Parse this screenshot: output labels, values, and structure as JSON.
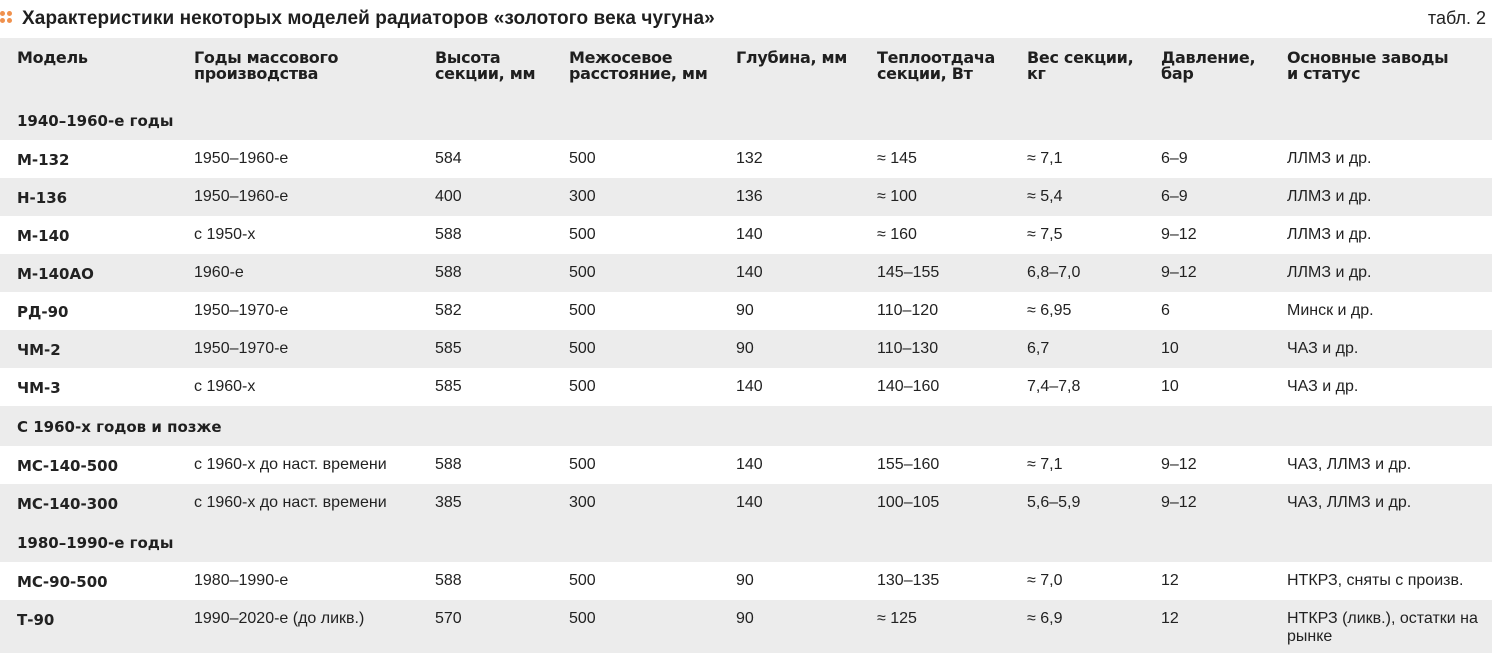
{
  "header": {
    "title": "Характеристики некоторых моделей радиаторов «золотого века чугуна»",
    "table_number": "табл. 2",
    "accent_color": "#f0914d"
  },
  "columns": [
    [
      "Модель",
      ""
    ],
    [
      "Годы массового",
      "производства"
    ],
    [
      "Высота",
      "секции, мм"
    ],
    [
      "Межосевое",
      "расстояние, мм"
    ],
    [
      "Глубина, мм",
      ""
    ],
    [
      "Теплоотдача",
      "секции, Вт"
    ],
    [
      "Вес секции,",
      "кг"
    ],
    [
      "Давление,",
      "бар"
    ],
    [
      "Основные заводы",
      "и статус"
    ]
  ],
  "groups": [
    {
      "title": "1940–1960-е годы",
      "rows": [
        [
          "М-132",
          "1950–1960-е",
          "584",
          "500",
          "132",
          "≈ 145",
          "≈ 7,1",
          "6–9",
          "ЛЛМЗ и др."
        ],
        [
          "Н-136",
          "1950–1960-е",
          "400",
          "300",
          "136",
          "≈ 100",
          "≈ 5,4",
          "6–9",
          "ЛЛМЗ и др."
        ],
        [
          "М-140",
          "с 1950-х",
          "588",
          "500",
          "140",
          "≈ 160",
          "≈ 7,5",
          "9–12",
          "ЛЛМЗ и др."
        ],
        [
          "М-140АО",
          "1960-е",
          "588",
          "500",
          "140",
          "145–155",
          "6,8–7,0",
          "9–12",
          "ЛЛМЗ и др."
        ],
        [
          "РД-90",
          "1950–1970-е",
          "582",
          "500",
          "90",
          "110–120",
          "≈ 6,95",
          "6",
          "Минск и др."
        ],
        [
          "ЧМ-2",
          "1950–1970-е",
          "585",
          "500",
          "90",
          "110–130",
          "6,7",
          "10",
          "ЧАЗ и др."
        ],
        [
          "ЧМ-3",
          "с 1960-х",
          "585",
          "500",
          "140",
          "140–160",
          "7,4–7,8",
          "10",
          "ЧАЗ и др."
        ]
      ]
    },
    {
      "title": "С 1960-х годов и позже",
      "rows": [
        [
          "МС-140-500",
          "с 1960-х до наст. времени",
          "588",
          "500",
          "140",
          "155–160",
          "≈ 7,1",
          "9–12",
          "ЧАЗ, ЛЛМЗ и др."
        ],
        [
          "МС-140-300",
          "с 1960-х до наст. времени",
          "385",
          "300",
          "140",
          "100–105",
          "5,6–5,9",
          "9–12",
          "ЧАЗ, ЛЛМЗ и др."
        ]
      ]
    },
    {
      "title": "1980–1990-е годы",
      "rows": [
        [
          "МС-90-500",
          "1980–1990-е",
          "588",
          "500",
          "90",
          "130–135",
          "≈ 7,0",
          "12",
          "НТКРЗ, сняты с произв."
        ],
        [
          "Т-90",
          "1990–2020-е (до ликв.)",
          "570",
          "500",
          "90",
          "≈ 125",
          "≈ 6,9",
          "12",
          "НТКРЗ (ликв.), остатки на рынке"
        ]
      ]
    }
  ]
}
